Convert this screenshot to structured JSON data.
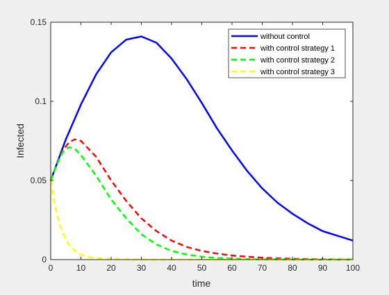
{
  "chart_data": {
    "type": "line",
    "xlabel": "time",
    "ylabel": "Infected",
    "xlim": [
      0,
      100
    ],
    "ylim": [
      0,
      0.15
    ],
    "xticks": [
      "0",
      "10",
      "20",
      "30",
      "40",
      "50",
      "60",
      "70",
      "80",
      "90",
      "100"
    ],
    "yticks": [
      "0",
      "0.05",
      "0.1",
      "0.15"
    ],
    "grid": false,
    "legend_position": "top-right",
    "series": [
      {
        "name": "without control",
        "color": "#0000ff",
        "dash": "solid",
        "x": [
          0,
          5,
          10,
          15,
          20,
          25,
          30,
          35,
          40,
          45,
          50,
          55,
          60,
          65,
          70,
          75,
          80,
          85,
          90,
          95,
          100
        ],
        "y": [
          0.05,
          0.076,
          0.098,
          0.117,
          0.131,
          0.139,
          0.141,
          0.137,
          0.127,
          0.114,
          0.099,
          0.083,
          0.069,
          0.056,
          0.045,
          0.036,
          0.029,
          0.023,
          0.018,
          0.015,
          0.012
        ]
      },
      {
        "name": "with control strategy 1",
        "color": "#ff0000",
        "dash": "dashed",
        "x": [
          0,
          2,
          4,
          6,
          8,
          10,
          15,
          20,
          25,
          30,
          35,
          40,
          45,
          50,
          55,
          60,
          65,
          70,
          75,
          80,
          85,
          90,
          95,
          100
        ],
        "y": [
          0.05,
          0.06,
          0.069,
          0.074,
          0.076,
          0.075,
          0.065,
          0.05,
          0.037,
          0.026,
          0.018,
          0.012,
          0.008,
          0.0055,
          0.0038,
          0.0026,
          0.0018,
          0.0012,
          0.0008,
          0.0005,
          0.0003,
          0.0002,
          0.0001,
          0.0001
        ]
      },
      {
        "name": "with control strategy 2",
        "color": "#00ff00",
        "dash": "dashed",
        "x": [
          0,
          2,
          4,
          6,
          8,
          10,
          15,
          20,
          25,
          30,
          35,
          40,
          45,
          50,
          55,
          60,
          65,
          70,
          75,
          80,
          85,
          90,
          95,
          100
        ],
        "y": [
          0.05,
          0.06,
          0.068,
          0.071,
          0.07,
          0.066,
          0.053,
          0.038,
          0.026,
          0.016,
          0.0095,
          0.0055,
          0.0032,
          0.0018,
          0.001,
          0.0006,
          0.0003,
          0.0002,
          0.0001,
          0.0001,
          0.0,
          0.0,
          0.0,
          0.0
        ]
      },
      {
        "name": "with control strategy 3",
        "color": "#ffff00",
        "dash": "dashed",
        "x": [
          0,
          1,
          2,
          3,
          4,
          5,
          6,
          8,
          10,
          12,
          15,
          20,
          25,
          30,
          40,
          50,
          60,
          70,
          80,
          90,
          100
        ],
        "y": [
          0.05,
          0.038,
          0.029,
          0.022,
          0.017,
          0.013,
          0.0095,
          0.0055,
          0.0032,
          0.0018,
          0.0009,
          0.0003,
          0.0001,
          0.0,
          0.0,
          0.0,
          0.0,
          0.0,
          0.0,
          0.0,
          0.0
        ]
      }
    ]
  }
}
